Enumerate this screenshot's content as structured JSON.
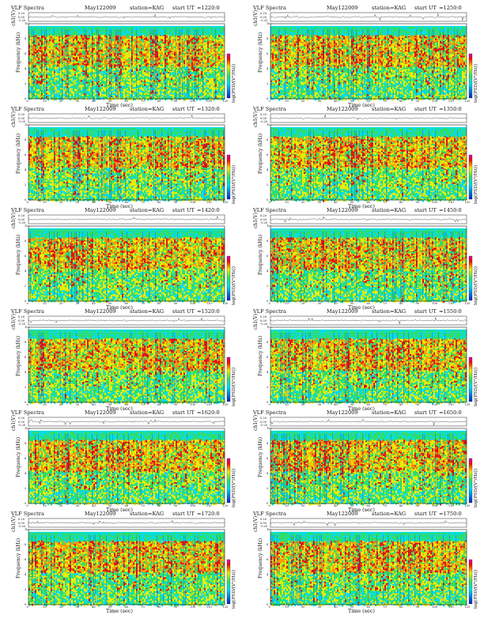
{
  "titles": {
    "left": "VLF Spectra",
    "date": "May122009",
    "station": "station=KAG",
    "start": "start",
    "ut": "UT"
  },
  "labels": {
    "ch_label": "ch1(V)",
    "freq_label": "Frequency (kHz)",
    "xlabel": "Time (sec)",
    "cbar_label": "log(PSD/(V²/Hz))"
  },
  "colors": {
    "cyan": "#00ddee",
    "green": "#33dd66",
    "yellow": "#eeee00",
    "orange": "#ff9900",
    "red": "#ee1100",
    "blue": "#0022cc",
    "magenta": "#dd00bb"
  },
  "chart_data": [
    {
      "type": "heatmap",
      "start_ut": "=1220:0",
      "x_ticks": [
        0,
        10,
        20,
        30,
        40,
        50,
        60,
        70,
        80,
        90,
        100,
        110,
        120
      ],
      "y_ticks": [
        0,
        2,
        4,
        6,
        8,
        10
      ],
      "ch_ticks": [
        "0.20",
        "0.00",
        "-0.20"
      ],
      "xlim": [
        0,
        120
      ],
      "ylim": [
        0,
        10
      ],
      "band_top_khz": 9.7
    },
    {
      "type": "heatmap",
      "start_ut": "=1250:0",
      "x_ticks": [
        0,
        10,
        20,
        30,
        40,
        50,
        60,
        70,
        80,
        90,
        100,
        110,
        120
      ],
      "y_ticks": [
        0,
        2,
        4,
        6,
        8,
        10
      ],
      "ch_ticks": [
        "0.20",
        "0.00",
        "-0.20"
      ],
      "xlim": [
        0,
        120
      ],
      "ylim": [
        0,
        10
      ],
      "band_top_khz": 9.7
    },
    {
      "type": "heatmap",
      "start_ut": "=1320:0",
      "x_ticks": [
        0,
        10,
        20,
        30,
        40,
        50,
        60,
        70,
        80,
        90,
        100,
        110,
        120
      ],
      "y_ticks": [
        0,
        2,
        4,
        6,
        8,
        10
      ],
      "ch_ticks": [
        "0.20",
        "0.00",
        "-0.20"
      ],
      "xlim": [
        0,
        120
      ],
      "ylim": [
        0,
        10
      ],
      "band_top_khz": 9.7
    },
    {
      "type": "heatmap",
      "start_ut": "=1350:0",
      "x_ticks": [
        0,
        10,
        20,
        30,
        40,
        50,
        60,
        70,
        80,
        90,
        100,
        110,
        120
      ],
      "y_ticks": [
        0,
        2,
        4,
        6,
        8,
        10
      ],
      "ch_ticks": [
        "0.20",
        "0.00",
        "-0.20"
      ],
      "xlim": [
        0,
        120
      ],
      "ylim": [
        0,
        10
      ],
      "band_top_khz": 9.7
    },
    {
      "type": "heatmap",
      "start_ut": "=1420:0",
      "x_ticks": [
        0,
        10,
        20,
        30,
        40,
        50,
        60,
        70,
        80,
        90,
        100,
        110,
        120
      ],
      "y_ticks": [
        0,
        2,
        4,
        6,
        8,
        10
      ],
      "ch_ticks": [
        "0.20",
        "0.00",
        "-0.20"
      ],
      "xlim": [
        0,
        120
      ],
      "ylim": [
        0,
        10
      ],
      "band_top_khz": 9.7
    },
    {
      "type": "heatmap",
      "start_ut": "=1450:0",
      "x_ticks": [
        0,
        10,
        20,
        30,
        40,
        50,
        60,
        70,
        80,
        90,
        100,
        110,
        120
      ],
      "y_ticks": [
        0,
        2,
        4,
        6,
        8,
        10
      ],
      "ch_ticks": [
        "0.20",
        "0.00",
        "-0.20"
      ],
      "xlim": [
        0,
        120
      ],
      "ylim": [
        0,
        10
      ],
      "band_top_khz": 9.7
    },
    {
      "type": "heatmap",
      "start_ut": "=1520:0",
      "x_ticks": [
        0,
        10,
        20,
        30,
        40,
        50,
        60,
        70,
        80,
        90,
        100,
        110,
        120
      ],
      "y_ticks": [
        0,
        2,
        4,
        6,
        8,
        10
      ],
      "ch_ticks": [
        "0.20",
        "0.00",
        "-0.20"
      ],
      "xlim": [
        0,
        120
      ],
      "ylim": [
        0,
        10
      ],
      "band_top_khz": 9.7
    },
    {
      "type": "heatmap",
      "start_ut": "=1550:0",
      "x_ticks": [
        0,
        10,
        20,
        30,
        40,
        50,
        60,
        70,
        80,
        90,
        100,
        110,
        120
      ],
      "y_ticks": [
        0,
        2,
        4,
        6,
        8,
        10
      ],
      "ch_ticks": [
        "0.20",
        "0.00",
        "-0.20"
      ],
      "xlim": [
        0,
        120
      ],
      "ylim": [
        0,
        10
      ],
      "band_top_khz": 9.7
    },
    {
      "type": "heatmap",
      "start_ut": "=1620:0",
      "x_ticks": [
        0,
        10,
        20,
        30,
        40,
        50,
        60,
        70,
        80,
        90,
        100,
        110,
        120
      ],
      "y_ticks": [
        0,
        2,
        4,
        6,
        8,
        10
      ],
      "ch_ticks": [
        "0.20",
        "0.00",
        "-0.20"
      ],
      "xlim": [
        0,
        120
      ],
      "ylim": [
        0,
        10
      ],
      "band_top_khz": 9.7
    },
    {
      "type": "heatmap",
      "start_ut": "=1650:0",
      "x_ticks": [
        0,
        10,
        20,
        30,
        40,
        50,
        60,
        70,
        80,
        90,
        100,
        110,
        120
      ],
      "y_ticks": [
        0,
        2,
        4,
        6,
        8,
        10
      ],
      "ch_ticks": [
        "0.20",
        "0.00",
        "-0.20"
      ],
      "xlim": [
        0,
        120
      ],
      "ylim": [
        0,
        10
      ],
      "band_top_khz": 9.7
    },
    {
      "type": "heatmap",
      "start_ut": "=1720:0",
      "x_ticks": [
        0,
        10,
        20,
        30,
        40,
        50,
        60,
        70,
        80,
        90,
        100,
        110,
        120
      ],
      "y_ticks": [
        0,
        2,
        4,
        6,
        8,
        10
      ],
      "ch_ticks": [
        "0.20",
        "0.00",
        "-0.20"
      ],
      "xlim": [
        0,
        120
      ],
      "ylim": [
        0,
        10
      ],
      "band_top_khz": 9.7
    },
    {
      "type": "heatmap",
      "start_ut": "=1750:0",
      "x_ticks": [
        0,
        10,
        20,
        30,
        40,
        50,
        60,
        70,
        80,
        90,
        100,
        110,
        120
      ],
      "y_ticks": [
        0,
        2,
        4,
        6,
        8,
        10
      ],
      "ch_ticks": [
        "0.20",
        "0.00",
        "-0.20"
      ],
      "xlim": [
        0,
        120
      ],
      "ylim": [
        0,
        10
      ],
      "band_top_khz": 9.7
    }
  ]
}
